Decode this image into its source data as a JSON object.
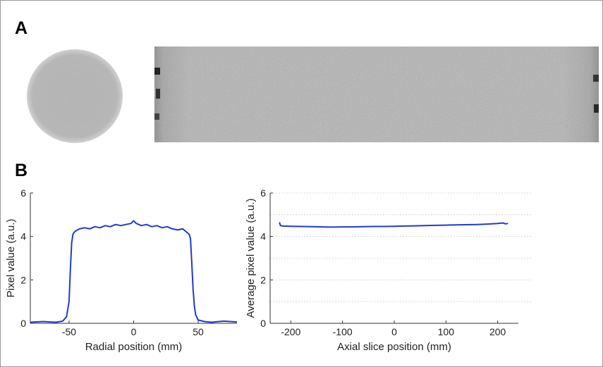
{
  "panels": {
    "A": "A",
    "B": "B"
  },
  "colors": {
    "line": "#1f3bd1",
    "axis": "#333333",
    "grid": "#cfcfcf",
    "phantom": "#b8b8b8"
  },
  "chart_data": [
    {
      "type": "line",
      "xlabel": "Radial position (mm)",
      "ylabel": "Pixel value (a.u.)",
      "xlim": [
        -80,
        80
      ],
      "ylim": [
        0,
        6
      ],
      "xticks": [
        -50,
        0,
        50
      ],
      "yticks": [
        0,
        2,
        4,
        6
      ],
      "grid": false,
      "series": [
        {
          "x": [
            -80,
            -70,
            -60,
            -55,
            -52,
            -50,
            -49,
            -48,
            -47,
            -46,
            -45,
            -42,
            -38,
            -34,
            -30,
            -26,
            -22,
            -18,
            -14,
            -10,
            -6,
            -2,
            0,
            2,
            4,
            6,
            10,
            14,
            18,
            22,
            26,
            30,
            34,
            38,
            41,
            43,
            44,
            45,
            46,
            47,
            48,
            50,
            55,
            60,
            70,
            80
          ],
          "y": [
            0.05,
            0.08,
            0.05,
            0.1,
            0.3,
            1.0,
            2.5,
            3.7,
            4.1,
            4.2,
            4.25,
            4.35,
            4.4,
            4.35,
            4.45,
            4.4,
            4.5,
            4.45,
            4.55,
            4.5,
            4.55,
            4.6,
            4.72,
            4.6,
            4.55,
            4.5,
            4.55,
            4.45,
            4.5,
            4.4,
            4.45,
            4.35,
            4.3,
            4.35,
            4.2,
            4.1,
            3.9,
            2.8,
            1.6,
            0.8,
            0.4,
            0.15,
            0.08,
            0.05,
            0.1,
            0.06
          ]
        }
      ]
    },
    {
      "type": "line",
      "xlabel": "Axial slice position (mm)",
      "ylabel": "Average pixel value (a.u.)",
      "xlim": [
        -240,
        240
      ],
      "ylim": [
        0,
        6
      ],
      "xticks": [
        -200,
        -100,
        0,
        100,
        200
      ],
      "yticks": [
        0,
        2,
        4,
        6
      ],
      "grid": true,
      "series": [
        {
          "x": [
            -222,
            -220,
            -215,
            -200,
            -180,
            -160,
            -140,
            -120,
            -100,
            -80,
            -60,
            -40,
            -20,
            0,
            20,
            40,
            60,
            80,
            100,
            120,
            140,
            160,
            180,
            200,
            210,
            215,
            220
          ],
          "y": [
            4.65,
            4.5,
            4.48,
            4.47,
            4.46,
            4.45,
            4.44,
            4.43,
            4.44,
            4.44,
            4.45,
            4.46,
            4.46,
            4.47,
            4.48,
            4.49,
            4.5,
            4.51,
            4.52,
            4.53,
            4.54,
            4.55,
            4.57,
            4.6,
            4.62,
            4.58,
            4.6
          ]
        }
      ]
    }
  ]
}
